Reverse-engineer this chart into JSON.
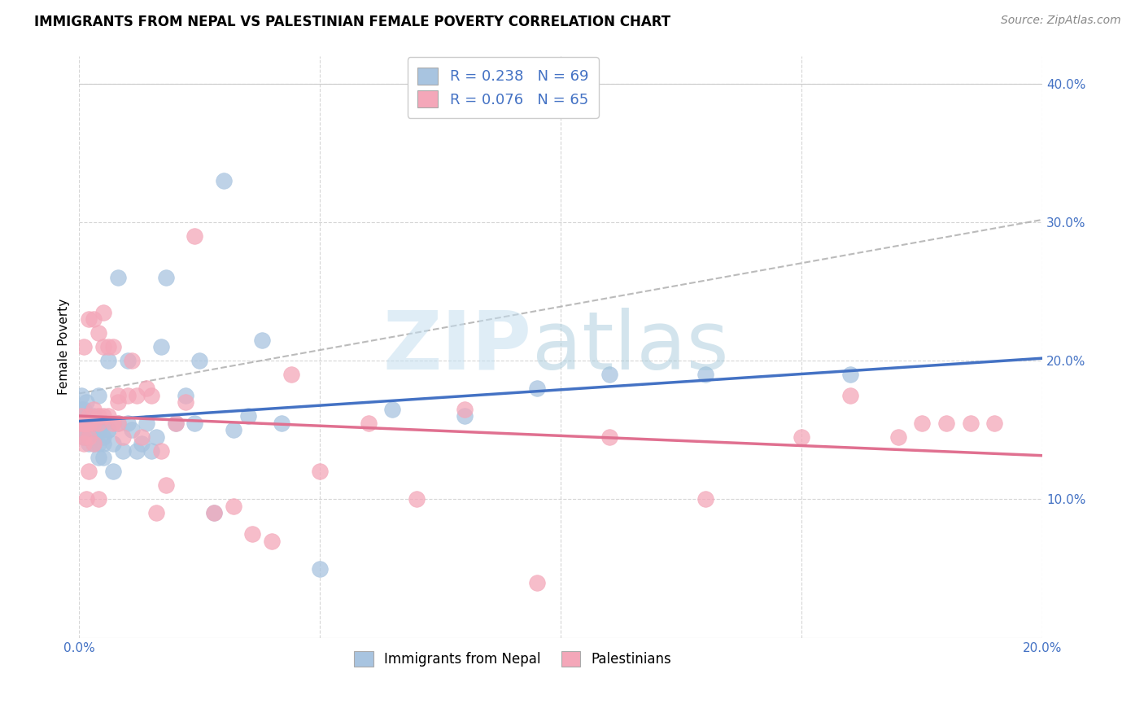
{
  "title": "IMMIGRANTS FROM NEPAL VS PALESTINIAN FEMALE POVERTY CORRELATION CHART",
  "source": "Source: ZipAtlas.com",
  "ylabel": "Female Poverty",
  "x_min": 0.0,
  "x_max": 0.2,
  "y_min": 0.0,
  "y_max": 0.42,
  "x_ticks": [
    0.0,
    0.05,
    0.1,
    0.15,
    0.2
  ],
  "x_tick_labels": [
    "0.0%",
    "",
    "",
    "",
    "20.0%"
  ],
  "y_ticks": [
    0.1,
    0.2,
    0.3,
    0.4
  ],
  "y_tick_labels_right": [
    "10.0%",
    "20.0%",
    "30.0%",
    "40.0%"
  ],
  "nepal_color": "#a8c4e0",
  "nepal_color_line": "#4472c4",
  "palest_color": "#f4a7b9",
  "palest_color_line": "#e07090",
  "legend_label_nepal": "Immigrants from Nepal",
  "legend_label_palest": "Palestinians",
  "legend_R_nepal": "R = 0.238",
  "legend_N_nepal": "N = 69",
  "legend_R_palest": "R = 0.076",
  "legend_N_palest": "N = 65",
  "nepal_x": [
    0.0005,
    0.0005,
    0.0005,
    0.0008,
    0.0008,
    0.001,
    0.001,
    0.001,
    0.001,
    0.001,
    0.0015,
    0.0015,
    0.0015,
    0.002,
    0.002,
    0.002,
    0.002,
    0.002,
    0.0025,
    0.0025,
    0.003,
    0.003,
    0.003,
    0.003,
    0.003,
    0.003,
    0.004,
    0.004,
    0.004,
    0.004,
    0.005,
    0.005,
    0.005,
    0.005,
    0.006,
    0.006,
    0.006,
    0.007,
    0.007,
    0.008,
    0.008,
    0.009,
    0.01,
    0.01,
    0.011,
    0.012,
    0.013,
    0.014,
    0.015,
    0.016,
    0.017,
    0.018,
    0.02,
    0.022,
    0.024,
    0.025,
    0.028,
    0.03,
    0.032,
    0.035,
    0.038,
    0.042,
    0.05,
    0.065,
    0.08,
    0.095,
    0.11,
    0.13,
    0.16
  ],
  "nepal_y": [
    0.175,
    0.165,
    0.155,
    0.16,
    0.15,
    0.155,
    0.165,
    0.145,
    0.15,
    0.15,
    0.155,
    0.16,
    0.17,
    0.155,
    0.145,
    0.16,
    0.155,
    0.14,
    0.15,
    0.145,
    0.155,
    0.15,
    0.16,
    0.14,
    0.15,
    0.145,
    0.175,
    0.14,
    0.15,
    0.13,
    0.155,
    0.145,
    0.14,
    0.13,
    0.15,
    0.2,
    0.15,
    0.14,
    0.12,
    0.155,
    0.26,
    0.135,
    0.155,
    0.2,
    0.15,
    0.135,
    0.14,
    0.155,
    0.135,
    0.145,
    0.21,
    0.26,
    0.155,
    0.175,
    0.155,
    0.2,
    0.09,
    0.33,
    0.15,
    0.16,
    0.215,
    0.155,
    0.05,
    0.165,
    0.16,
    0.18,
    0.19,
    0.19,
    0.19
  ],
  "palest_x": [
    0.0005,
    0.0005,
    0.0008,
    0.001,
    0.001,
    0.001,
    0.001,
    0.001,
    0.0015,
    0.0015,
    0.002,
    0.002,
    0.002,
    0.002,
    0.002,
    0.003,
    0.003,
    0.003,
    0.003,
    0.004,
    0.004,
    0.004,
    0.004,
    0.005,
    0.005,
    0.005,
    0.006,
    0.006,
    0.007,
    0.007,
    0.008,
    0.008,
    0.008,
    0.009,
    0.01,
    0.011,
    0.012,
    0.013,
    0.014,
    0.015,
    0.016,
    0.017,
    0.018,
    0.02,
    0.022,
    0.024,
    0.028,
    0.032,
    0.036,
    0.04,
    0.044,
    0.05,
    0.06,
    0.07,
    0.08,
    0.095,
    0.11,
    0.13,
    0.15,
    0.16,
    0.17,
    0.175,
    0.18,
    0.185,
    0.19
  ],
  "palest_y": [
    0.155,
    0.16,
    0.155,
    0.21,
    0.155,
    0.155,
    0.14,
    0.145,
    0.155,
    0.1,
    0.23,
    0.155,
    0.16,
    0.145,
    0.12,
    0.23,
    0.155,
    0.165,
    0.14,
    0.22,
    0.16,
    0.155,
    0.1,
    0.21,
    0.235,
    0.16,
    0.21,
    0.16,
    0.21,
    0.155,
    0.17,
    0.155,
    0.175,
    0.145,
    0.175,
    0.2,
    0.175,
    0.145,
    0.18,
    0.175,
    0.09,
    0.135,
    0.11,
    0.155,
    0.17,
    0.29,
    0.09,
    0.095,
    0.075,
    0.07,
    0.19,
    0.12,
    0.155,
    0.1,
    0.165,
    0.04,
    0.145,
    0.1,
    0.145,
    0.175,
    0.145,
    0.155,
    0.155,
    0.155,
    0.155
  ]
}
